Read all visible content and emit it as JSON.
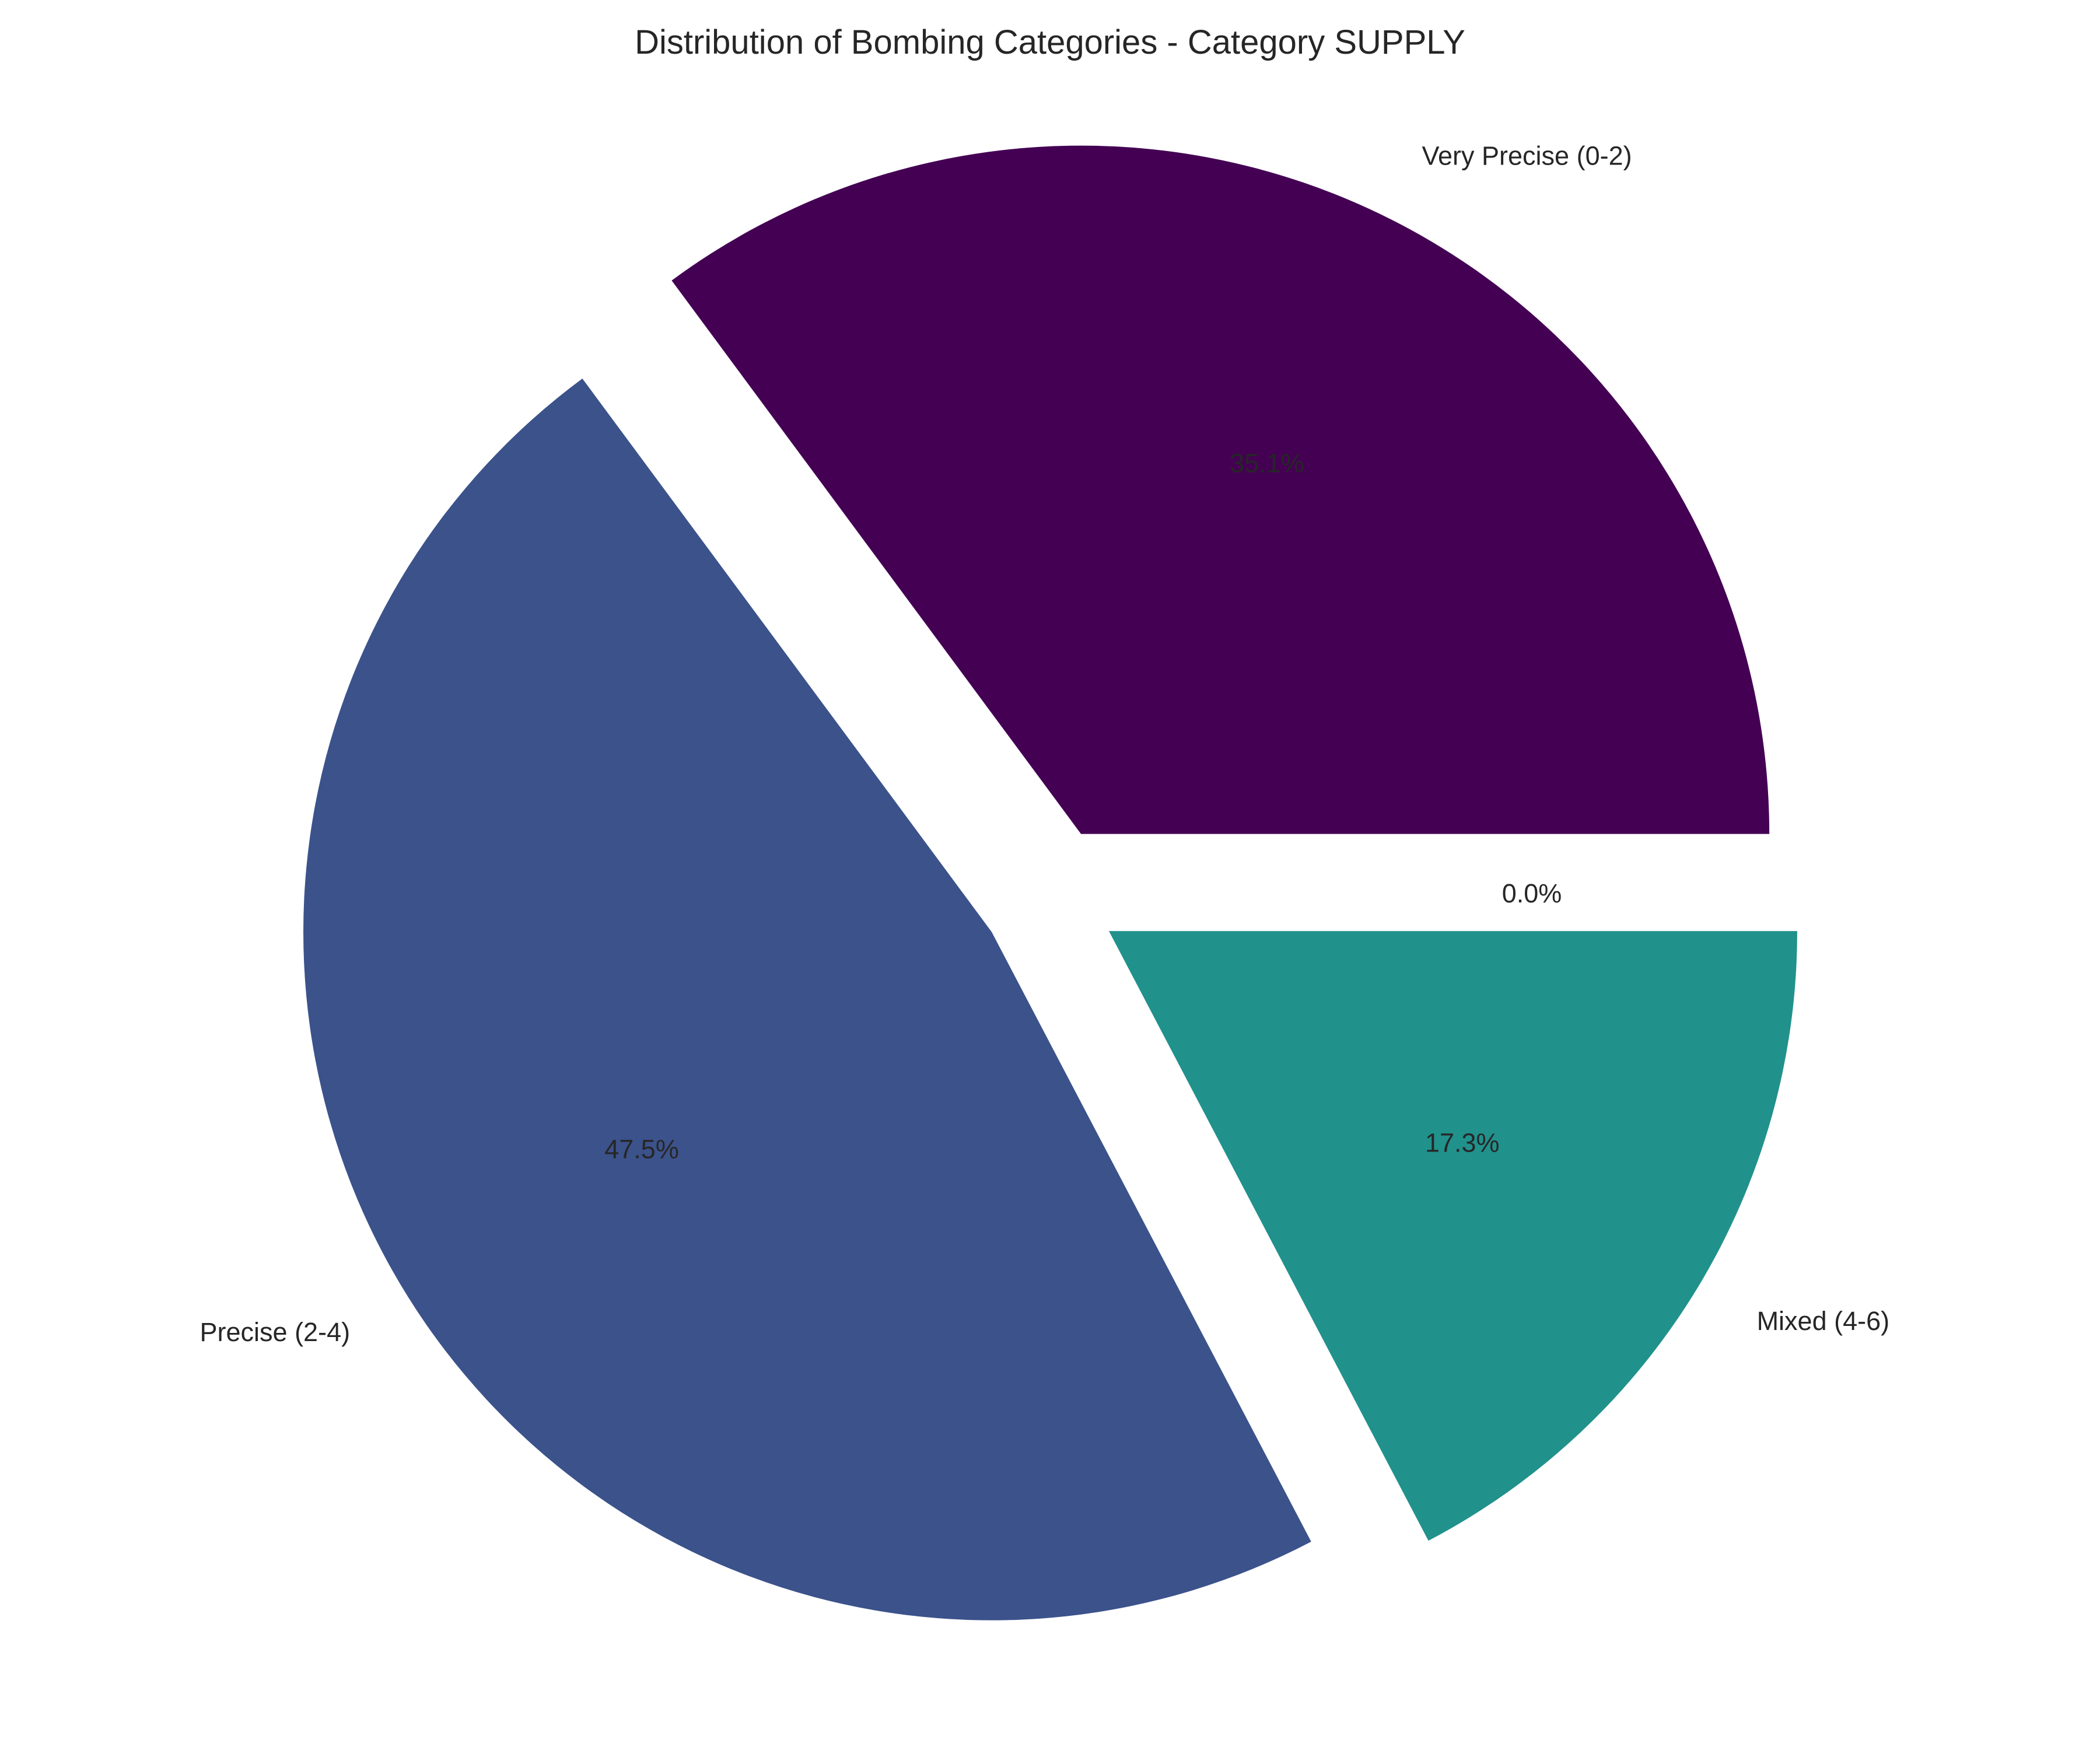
{
  "chart_data": {
    "type": "pie",
    "title": "Distribution of Bombing Categories - Category SUPPLY",
    "slices": [
      {
        "label": "Very Precise (0-2)",
        "value": 35.1,
        "pct_label": "35.1%",
        "color": "#440154"
      },
      {
        "label": "Precise (2-4)",
        "value": 47.5,
        "pct_label": "47.5%",
        "color": "#3b528b"
      },
      {
        "label": "Mixed (4-6)",
        "value": 17.3,
        "pct_label": "17.3%",
        "color": "#21918c"
      },
      {
        "label": "",
        "value": 0.0,
        "pct_label": "0.0%",
        "color": "#5ec962"
      }
    ],
    "start_angle": 0,
    "direction": "counterclockwise",
    "exploded": true,
    "legend": "none"
  }
}
